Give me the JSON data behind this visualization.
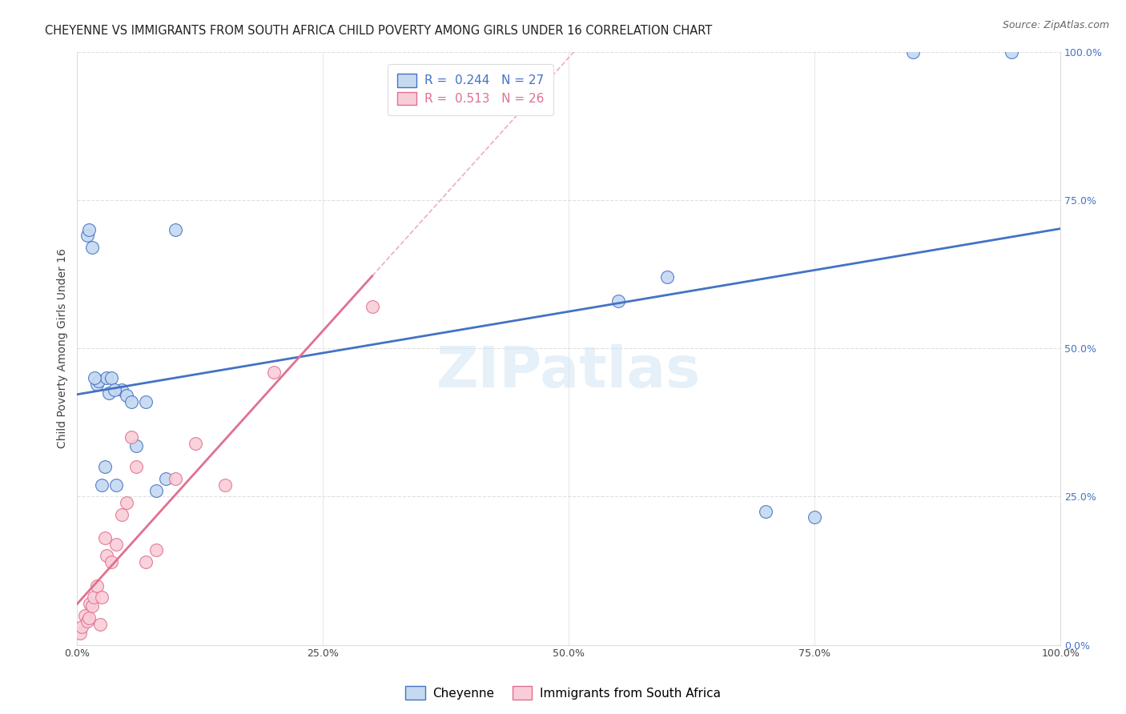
{
  "title": "CHEYENNE VS IMMIGRANTS FROM SOUTH AFRICA CHILD POVERTY AMONG GIRLS UNDER 16 CORRELATION CHART",
  "source": "Source: ZipAtlas.com",
  "ylabel": "Child Poverty Among Girls Under 16",
  "watermark": "ZIPatlas",
  "blue_label": "Cheyenne",
  "pink_label": "Immigrants from South Africa",
  "blue_R": "0.244",
  "blue_N": "27",
  "pink_R": "0.513",
  "pink_N": "26",
  "blue_color": "#c5d9f1",
  "pink_color": "#f9cdd8",
  "blue_line_color": "#4472c4",
  "pink_line_color": "#e07090",
  "ref_line_color": "#e8b0c0",
  "xlim": [
    0,
    100
  ],
  "ylim": [
    0,
    100
  ],
  "xtick_vals": [
    0,
    25,
    50,
    75,
    100
  ],
  "ytick_vals": [
    0,
    25,
    50,
    75,
    100
  ],
  "blue_x": [
    1.0,
    1.5,
    2.0,
    2.2,
    2.8,
    3.0,
    3.2,
    3.5,
    4.0,
    4.5,
    5.0,
    5.5,
    6.0,
    7.0,
    8.0,
    9.0,
    10.0,
    55.0,
    60.0,
    70.0,
    75.0,
    85.0,
    95.0,
    1.2,
    1.8,
    2.5,
    3.8
  ],
  "blue_y": [
    69.0,
    67.0,
    44.0,
    44.5,
    30.0,
    45.0,
    42.5,
    45.0,
    27.0,
    43.0,
    42.0,
    41.0,
    33.5,
    41.0,
    26.0,
    28.0,
    70.0,
    58.0,
    62.0,
    22.5,
    21.5,
    100.0,
    100.0,
    70.0,
    45.0,
    27.0,
    43.0
  ],
  "pink_x": [
    0.3,
    0.5,
    0.8,
    1.0,
    1.2,
    1.3,
    1.5,
    1.7,
    2.0,
    2.3,
    2.5,
    2.8,
    3.0,
    3.5,
    4.0,
    4.5,
    5.0,
    5.5,
    6.0,
    7.0,
    8.0,
    10.0,
    12.0,
    15.0,
    20.0,
    30.0
  ],
  "pink_y": [
    2.0,
    3.0,
    5.0,
    4.0,
    4.5,
    7.0,
    6.5,
    8.0,
    10.0,
    3.5,
    8.0,
    18.0,
    15.0,
    14.0,
    17.0,
    22.0,
    24.0,
    35.0,
    30.0,
    14.0,
    16.0,
    28.0,
    34.0,
    27.0,
    46.0,
    57.0
  ],
  "blue_line_x0": 0,
  "blue_line_y0": 40.0,
  "blue_line_x1": 100,
  "blue_line_y1": 65.0,
  "pink_line_x0": 0,
  "pink_line_y0": 2.0,
  "pink_line_x1": 30,
  "pink_line_y1": 57.0,
  "ref_line_dashed": true,
  "grid_color": "#e0e0e0",
  "background_color": "#ffffff",
  "title_fontsize": 10.5,
  "axis_label_fontsize": 10,
  "tick_fontsize": 9,
  "legend_fontsize": 11
}
